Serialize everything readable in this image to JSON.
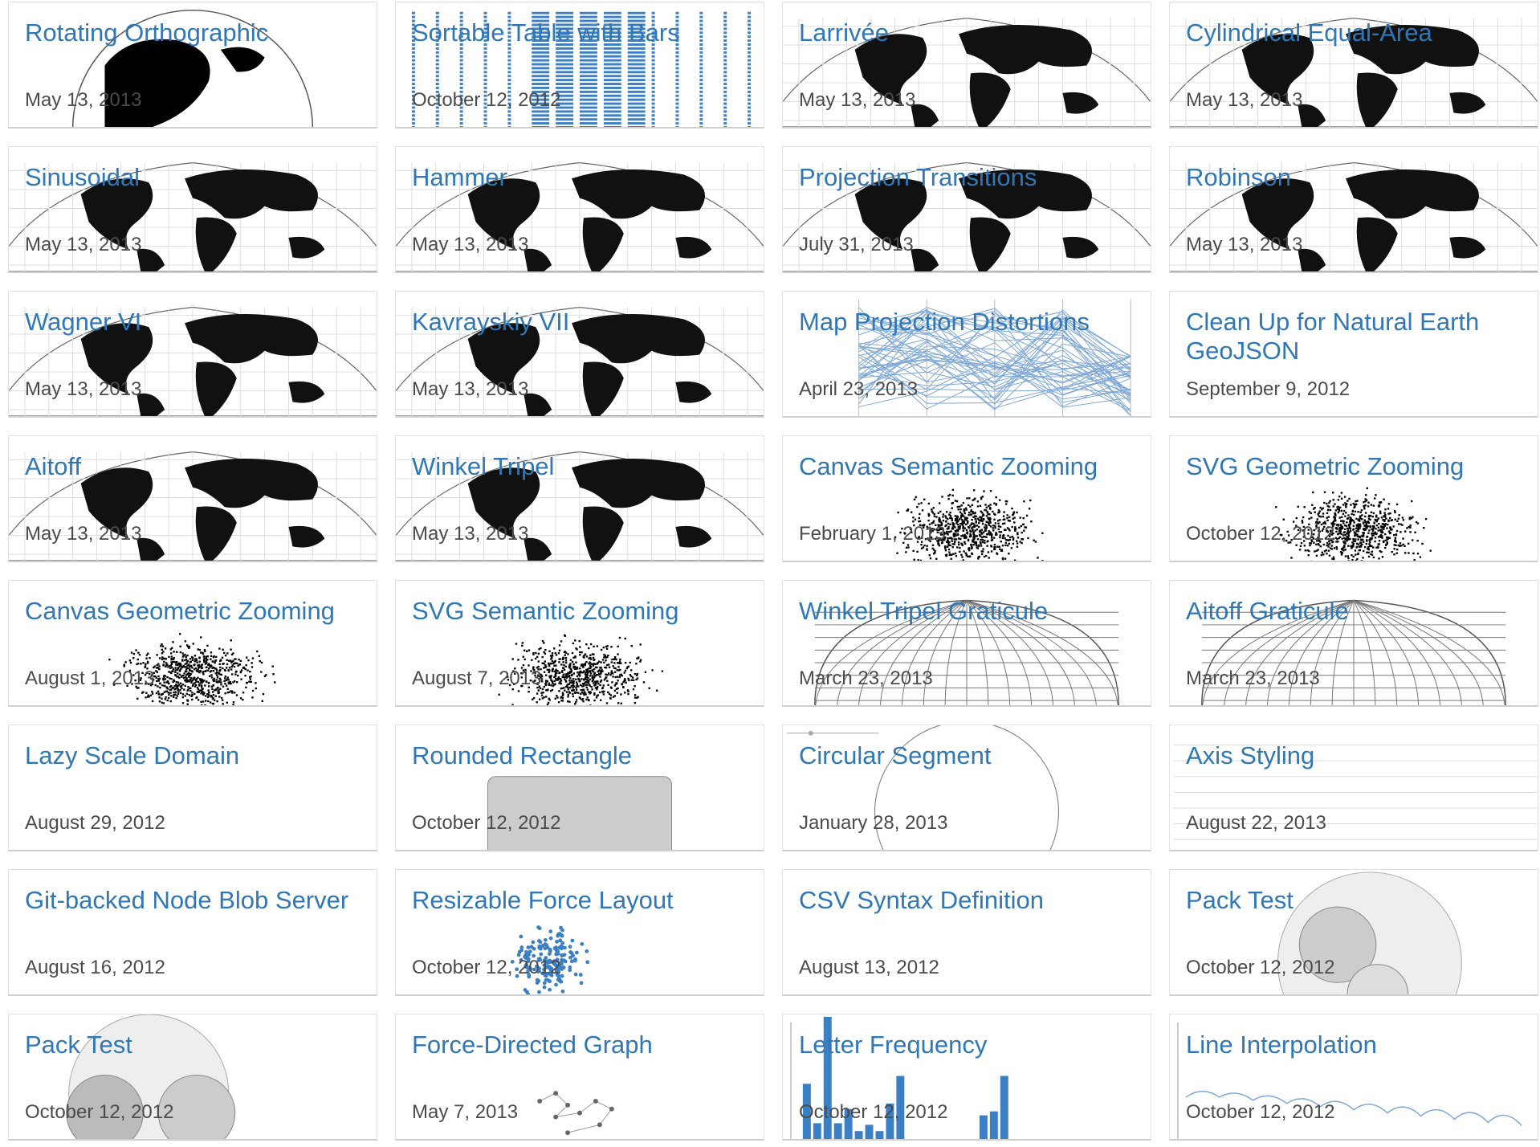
{
  "gallery": {
    "items": [
      {
        "title": "Rotating Orthographic",
        "date": "May 13, 2013",
        "icon": "orthographic-globe-thumbnail"
      },
      {
        "title": "Sortable Table with Bars",
        "date": "October 12, 2012",
        "icon": "table-bars-thumbnail"
      },
      {
        "title": "Larrivée",
        "date": "May 13, 2013",
        "icon": "world-map-thumbnail"
      },
      {
        "title": "Cylindrical Equal-Area",
        "date": "May 13, 2013",
        "icon": "world-map-thumbnail"
      },
      {
        "title": "Sinusoidal",
        "date": "May 13, 2013",
        "icon": "world-map-thumbnail"
      },
      {
        "title": "Hammer",
        "date": "May 13, 2013",
        "icon": "world-map-thumbnail"
      },
      {
        "title": "Projection Transitions",
        "date": "July 31, 2013",
        "icon": "world-map-thumbnail"
      },
      {
        "title": "Robinson",
        "date": "May 13, 2013",
        "icon": "world-map-thumbnail"
      },
      {
        "title": "Wagner VI",
        "date": "May 13, 2013",
        "icon": "world-map-thumbnail"
      },
      {
        "title": "Kavrayskiy VII",
        "date": "May 13, 2013",
        "icon": "world-map-thumbnail"
      },
      {
        "title": "Map Projection Distortions",
        "date": "April 23, 2013",
        "icon": "parallel-coordinates-thumbnail"
      },
      {
        "title": "Clean Up for Natural Earth GeoJSON",
        "date": "September 9, 2012",
        "icon": "blank-thumbnail"
      },
      {
        "title": "Aitoff",
        "date": "May 13, 2013",
        "icon": "world-map-thumbnail"
      },
      {
        "title": "Winkel Tripel",
        "date": "May 13, 2013",
        "icon": "world-map-thumbnail"
      },
      {
        "title": "Canvas Semantic Zooming",
        "date": "February 1, 2013",
        "icon": "scatter-dots-thumbnail"
      },
      {
        "title": "SVG Geometric Zooming",
        "date": "October 12, 2012",
        "icon": "scatter-dots-thumbnail"
      },
      {
        "title": "Canvas Geometric Zooming",
        "date": "August 1, 2013",
        "icon": "scatter-dots-thumbnail"
      },
      {
        "title": "SVG Semantic Zooming",
        "date": "August 7, 2013",
        "icon": "scatter-dots-thumbnail"
      },
      {
        "title": "Winkel Tripel Graticule",
        "date": "March 23, 2013",
        "icon": "graticule-thumbnail"
      },
      {
        "title": "Aitoff Graticule",
        "date": "March 23, 2013",
        "icon": "graticule-thumbnail"
      },
      {
        "title": "Lazy Scale Domain",
        "date": "August 29, 2012",
        "icon": "blank-thumbnail"
      },
      {
        "title": "Rounded Rectangle",
        "date": "October 12, 2012",
        "icon": "rounded-rectangle-thumbnail"
      },
      {
        "title": "Circular Segment",
        "date": "January 28, 2013",
        "icon": "circular-segment-thumbnail"
      },
      {
        "title": "Axis Styling",
        "date": "August 22, 2013",
        "icon": "axis-lines-thumbnail"
      },
      {
        "title": "Git-backed Node Blob Server",
        "date": "August 16, 2012",
        "icon": "blank-thumbnail"
      },
      {
        "title": "Resizable Force Layout",
        "date": "October 12, 2012",
        "icon": "force-layout-thumbnail"
      },
      {
        "title": "CSV Syntax Definition",
        "date": "August 13, 2012",
        "icon": "blank-thumbnail"
      },
      {
        "title": "Pack Test",
        "date": "October 12, 2012",
        "icon": "pack-circles-thumbnail"
      },
      {
        "title": "Pack Test",
        "date": "October 12, 2012",
        "icon": "pack-circles-thumbnail"
      },
      {
        "title": "Force-Directed Graph",
        "date": "May 7, 2013",
        "icon": "force-graph-thumbnail"
      },
      {
        "title": "Letter Frequency",
        "date": "October 12, 2012",
        "icon": "bar-chart-thumbnail"
      },
      {
        "title": "Line Interpolation",
        "date": "October 12, 2012",
        "icon": "line-interpolation-thumbnail"
      }
    ]
  }
}
